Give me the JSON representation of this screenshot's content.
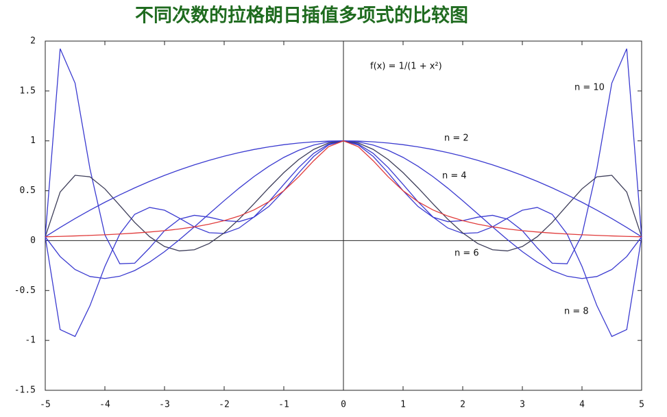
{
  "chart_data": {
    "type": "line",
    "title": "不同次数的拉格朗日插值多项式的比较图",
    "x": [
      -5,
      -4.75,
      -4.5,
      -4.25,
      -4,
      -3.75,
      -3.5,
      -3.25,
      -3,
      -2.75,
      -2.5,
      -2.25,
      -2,
      -1.75,
      -1.5,
      -1.25,
      -1,
      -0.75,
      -0.5,
      -0.25,
      0,
      0.25,
      0.5,
      0.75,
      1,
      1.25,
      1.5,
      1.75,
      2,
      2.25,
      2.5,
      2.75,
      3,
      3.25,
      3.5,
      3.75,
      4,
      4.25,
      4.5,
      4.75,
      5
    ],
    "series": [
      {
        "name": "f(x) = 1/(1 + x²)",
        "color": "#e03a3a",
        "values": [
          0.0385,
          0.0424,
          0.0471,
          0.0525,
          0.0588,
          0.0664,
          0.0755,
          0.0865,
          0.1,
          0.1168,
          0.1379,
          0.1649,
          0.2,
          0.2462,
          0.3077,
          0.3902,
          0.5,
          0.64,
          0.8,
          0.9412,
          1,
          0.9412,
          0.8,
          0.64,
          0.5,
          0.3902,
          0.3077,
          0.2462,
          0.2,
          0.1649,
          0.1379,
          0.1168,
          0.1,
          0.0865,
          0.0755,
          0.0664,
          0.0588,
          0.0525,
          0.0471,
          0.0424,
          0.0385
        ]
      },
      {
        "name": "n = 2",
        "color": "#3a3ad0",
        "values": [
          0.0385,
          0.1322,
          0.2212,
          0.3053,
          0.3846,
          0.4591,
          0.5288,
          0.5938,
          0.6538,
          0.7091,
          0.7596,
          0.8053,
          0.8462,
          0.8822,
          0.9135,
          0.9399,
          0.9615,
          0.9784,
          0.9904,
          0.9976,
          1,
          0.9976,
          0.9904,
          0.9784,
          0.9615,
          0.9399,
          0.9135,
          0.8822,
          0.8462,
          0.8053,
          0.7596,
          0.7091,
          0.6538,
          0.5938,
          0.5288,
          0.4591,
          0.3846,
          0.3053,
          0.2212,
          0.1322,
          0.0385
        ]
      },
      {
        "name": "n = 4",
        "color": "#3a3ad0",
        "values": [
          0.0385,
          -0.1596,
          -0.2892,
          -0.3596,
          -0.3794,
          -0.3569,
          -0.2998,
          -0.2153,
          -0.1101,
          0.0095,
          0.1379,
          0.2698,
          0.4005,
          0.5258,
          0.6419,
          0.7456,
          0.8342,
          0.9054,
          0.9576,
          0.9893,
          1,
          0.9893,
          0.9576,
          0.9054,
          0.8342,
          0.7456,
          0.6419,
          0.5258,
          0.4005,
          0.2698,
          0.1379,
          0.0095,
          -0.1101,
          -0.2153,
          -0.2998,
          -0.3569,
          -0.3794,
          -0.3596,
          -0.2892,
          -0.1596,
          0.0385
        ]
      },
      {
        "name": "n = 6",
        "color": "#3c3c58",
        "values": [
          0.0385,
          0.487,
          0.6546,
          0.6396,
          0.5191,
          0.3523,
          0.1824,
          0.0391,
          -0.059,
          -0.103,
          -0.0914,
          -0.0285,
          0.0773,
          0.2143,
          0.3696,
          0.5297,
          0.6813,
          0.8128,
          0.9142,
          0.9782,
          1,
          0.9782,
          0.9142,
          0.8128,
          0.6813,
          0.5297,
          0.3696,
          0.2143,
          0.0773,
          -0.0285,
          -0.0914,
          -0.103,
          -0.059,
          0.0391,
          0.1824,
          0.3523,
          0.5191,
          0.6396,
          0.6546,
          0.487,
          0.0385
        ]
      },
      {
        "name": "n = 8",
        "color": "#3a3ad0",
        "values": [
          0.0385,
          -0.8917,
          -0.9603,
          -0.6519,
          -0.2588,
          0.0664,
          0.2638,
          0.3327,
          0.3049,
          0.2251,
          0.1379,
          0.0794,
          0.0726,
          0.1266,
          0.2374,
          0.3902,
          0.5636,
          0.7328,
          0.874,
          0.9674,
          1,
          0.9674,
          0.874,
          0.7328,
          0.5636,
          0.3902,
          0.2374,
          0.1266,
          0.0726,
          0.0794,
          0.1379,
          0.2251,
          0.3049,
          0.3327,
          0.2638,
          0.0664,
          -0.2588,
          -0.6519,
          -0.9603,
          -0.8917,
          0.0385
        ]
      },
      {
        "name": "n = 10",
        "color": "#3a3ad0",
        "values": [
          0.0385,
          1.9236,
          1.5787,
          0.7194,
          0.0588,
          -0.2315,
          -0.2262,
          -0.0726,
          0.1,
          0.2156,
          0.2538,
          0.235,
          0.2,
          0.1906,
          0.2353,
          0.3426,
          0.5,
          0.679,
          0.8434,
          0.9586,
          1,
          0.9586,
          0.8434,
          0.679,
          0.5,
          0.3426,
          0.2353,
          0.1906,
          0.2,
          0.235,
          0.2538,
          0.2156,
          0.1,
          -0.0726,
          -0.2262,
          -0.2315,
          0.0588,
          0.7194,
          1.5787,
          1.9236,
          0.0385
        ]
      }
    ],
    "xlim": [
      -5,
      5
    ],
    "xticks": [
      -5,
      -4,
      -3,
      -2,
      -1,
      0,
      1,
      2,
      3,
      4,
      5
    ],
    "ylim": [
      -1.5,
      2
    ],
    "yticks": [
      -1.5,
      -1,
      -0.5,
      0,
      0.5,
      1,
      1.5,
      2
    ],
    "grid": false
  }
}
